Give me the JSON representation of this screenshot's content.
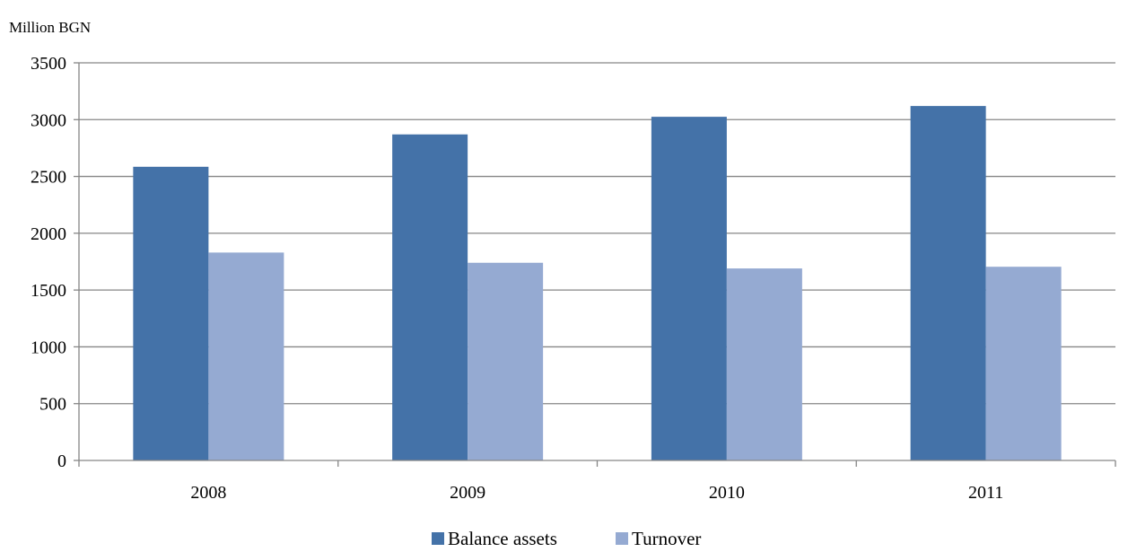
{
  "chart_data": {
    "type": "bar",
    "title": "",
    "xlabel": "",
    "ylabel": "Million BGN",
    "categories": [
      "2008",
      "2009",
      "2010",
      "2011"
    ],
    "series": [
      {
        "name": "Balance assets",
        "values": [
          2585,
          2870,
          3025,
          3120
        ],
        "color": "#4472A8"
      },
      {
        "name": "Turnover",
        "values": [
          1830,
          1740,
          1690,
          1705
        ],
        "color": "#95AAD2"
      }
    ],
    "ylim": [
      0,
      3500
    ],
    "yticks": [
      0,
      500,
      1000,
      1500,
      2000,
      2500,
      3000,
      3500
    ],
    "grid": true,
    "gridlines_color": "#868686",
    "legend_position": "bottom"
  }
}
